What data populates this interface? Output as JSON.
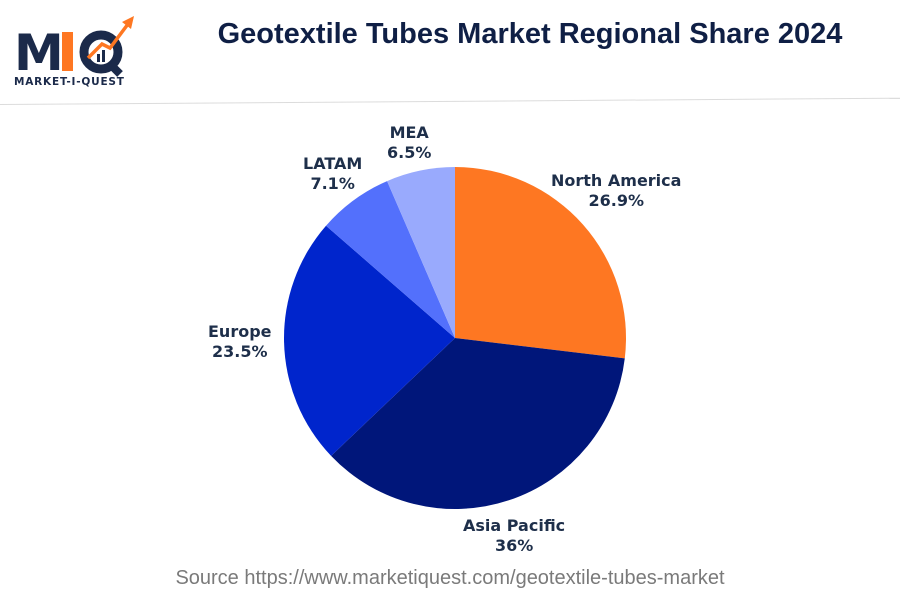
{
  "header": {
    "logo": {
      "mark": "MIQ",
      "tagline": "MARKET-I-QUEST",
      "icon": "growth-arrow-chart-icon"
    },
    "title": "Geotextile Tubes Market Regional Share 2024"
  },
  "colors": {
    "north_america": "#fe7722",
    "asia_pacific": "#00167a",
    "europe": "#0025cc",
    "latam": "#5370fc",
    "mea": "#99aafd",
    "label_text": "#1e2f4a",
    "title_text": "#0f1f45",
    "source_text": "#7a7a7a"
  },
  "labels": {
    "north_america": {
      "name": "North America",
      "value": "26.9%"
    },
    "asia_pacific": {
      "name": "Asia Pacific",
      "value": "36%"
    },
    "europe": {
      "name": "Europe",
      "value": "23.5%"
    },
    "latam": {
      "name": "LATAM",
      "value": "7.1%"
    },
    "mea": {
      "name": "MEA",
      "value": "6.5%"
    }
  },
  "footer": {
    "source": "Source https://www.marketiquest.com/geotextile-tubes-market"
  },
  "chart_data": {
    "type": "pie",
    "title": "Geotextile Tubes Market Regional Share 2024",
    "categories": [
      "North America",
      "Asia Pacific",
      "Europe",
      "LATAM",
      "MEA"
    ],
    "values": [
      26.9,
      36,
      23.5,
      7.1,
      6.5
    ],
    "unit": "%",
    "start_angle": "12 o'clock, clockwise",
    "colors": [
      "#fe7722",
      "#00167a",
      "#0025cc",
      "#5370fc",
      "#99aafd"
    ],
    "legend": "none (direct labels)"
  }
}
